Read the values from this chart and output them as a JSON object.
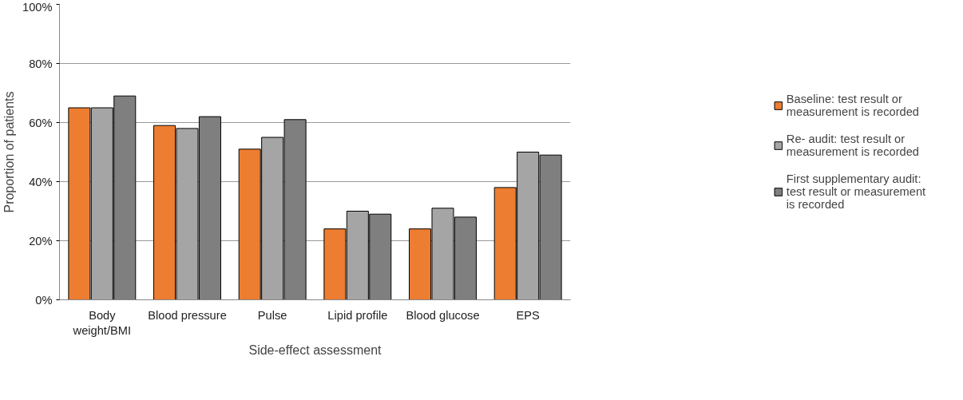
{
  "chart_data": {
    "type": "bar",
    "xlabel": "Side-effect assessment",
    "ylabel": "Proportion of patients",
    "categories": [
      "Body weight/BMI",
      "Blood pressure",
      "Pulse",
      "Lipid profile",
      "Blood glucose",
      "EPS"
    ],
    "series": [
      {
        "name": "Baseline: test result or measurement is recorded",
        "color": "#ed7d31",
        "values": [
          65,
          59,
          51,
          24,
          24,
          38
        ]
      },
      {
        "name": "Re- audit: test result or measurement is recorded",
        "color": "#a5a5a5",
        "values": [
          65,
          58,
          55,
          30,
          31,
          50
        ]
      },
      {
        "name": "First supplementary audit: test result or measurement is recorded",
        "color": "#7f7f7f",
        "values": [
          69,
          62,
          61,
          29,
          28,
          49
        ]
      }
    ],
    "ylim": [
      0,
      100
    ],
    "yticks": [
      {
        "value": 0,
        "label": "0%"
      },
      {
        "value": 20,
        "label": "20%"
      },
      {
        "value": 40,
        "label": "40%"
      },
      {
        "value": 60,
        "label": "60%"
      },
      {
        "value": 80,
        "label": "80%"
      },
      {
        "value": 100,
        "label": "100%"
      }
    ],
    "grid": "y",
    "legend": "right"
  }
}
